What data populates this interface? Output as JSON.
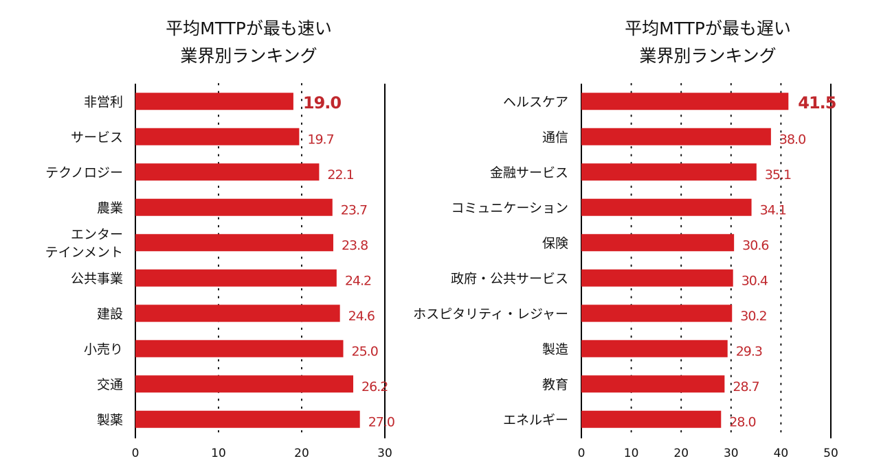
{
  "colors": {
    "bar": "#d71e23",
    "value_label": "#c0282d",
    "text": "#111111",
    "axis": "#000000",
    "background": "#ffffff"
  },
  "chart_data": [
    {
      "type": "bar",
      "orientation": "horizontal",
      "title_lines": [
        "平均MTTPが最も速い",
        "業界別ランキング"
      ],
      "categories": [
        "非営利",
        "サービス",
        "テクノロジー",
        "農業",
        "エンター\nテインメント",
        "公共事業",
        "建設",
        "小売り",
        "交通",
        "製薬"
      ],
      "values": [
        19.0,
        19.7,
        22.1,
        23.7,
        23.8,
        24.2,
        24.6,
        25.0,
        26.2,
        27.0
      ],
      "value_labels": [
        "19.0",
        "19.7",
        "22.1",
        "23.7",
        "23.8",
        "24.2",
        "24.6",
        "25.0",
        "26.2",
        "27.0"
      ],
      "xlim": [
        0,
        30
      ],
      "xticks": [
        0,
        10,
        20,
        30
      ],
      "xtick_labels": [
        "0",
        "10",
        "20",
        "30"
      ],
      "grid": "dotted vertical",
      "highlight_index": 0
    },
    {
      "type": "bar",
      "orientation": "horizontal",
      "title_lines": [
        "平均MTTPが最も遅い",
        "業界別ランキング"
      ],
      "categories": [
        "ヘルスケア",
        "通信",
        "金融サービス",
        "コミュニケーション",
        "保険",
        "政府・公共サービス",
        "ホスピタリティ・レジャー",
        "製造",
        "教育",
        "エネルギー"
      ],
      "values": [
        41.5,
        38.0,
        35.1,
        34.1,
        30.6,
        30.4,
        30.2,
        29.3,
        28.7,
        28.0
      ],
      "value_labels": [
        "41.5",
        "38.0",
        "35.1",
        "34.1",
        "30.6",
        "30.4",
        "30.2",
        "29.3",
        "28.7",
        "28.0"
      ],
      "xlim": [
        0,
        50
      ],
      "xticks": [
        0,
        10,
        20,
        30,
        40,
        50
      ],
      "xtick_labels": [
        "0",
        "10",
        "20",
        "30",
        "40",
        "50"
      ],
      "grid": "dotted vertical",
      "highlight_index": 0
    }
  ]
}
